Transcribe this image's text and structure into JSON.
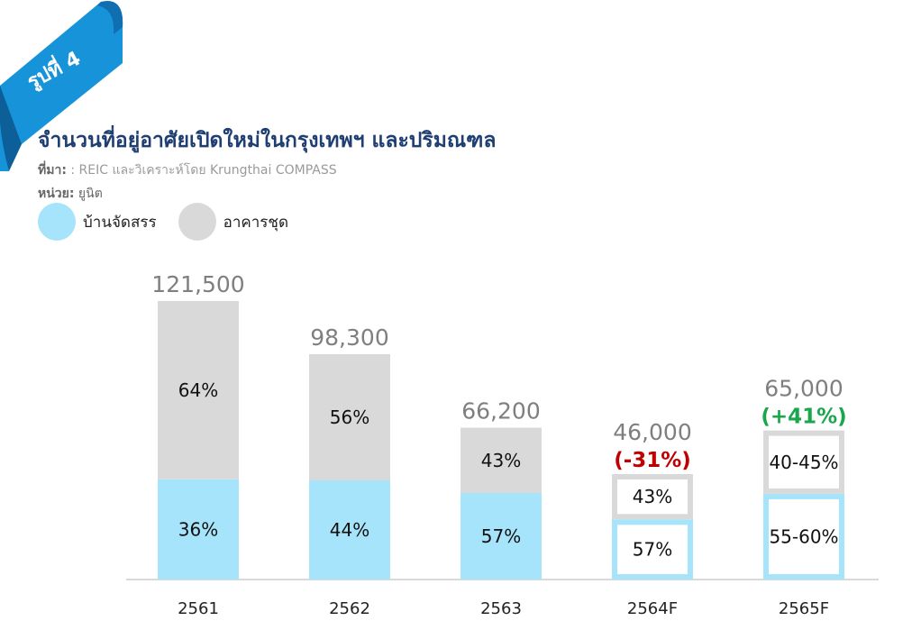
{
  "figure_label": "รูปที่ 4",
  "title": "จำนวนที่อยู่อาศัยเปิดใหม่ในกรุงเทพฯ และปริมณฑล",
  "source_label": "ที่มา:",
  "source_text": " : REIC และวิเคราะห์โดย Krungthai COMPASS",
  "unit_label": "หน่วย:",
  "unit_text": " ยูนิต",
  "colors": {
    "houses": "#a5e4fa",
    "condo": "#d9d9d9",
    "title": "#1f3f73",
    "negative": "#c00000",
    "positive": "#1aa64b",
    "total_label": "#7f7f7f",
    "ribbon": "#1793d9"
  },
  "chart_data": {
    "type": "bar",
    "stacked": true,
    "categories": [
      "2561",
      "2562",
      "2563",
      "2564F",
      "2565F"
    ],
    "totals": [
      121500,
      98300,
      66200,
      46000,
      65000
    ],
    "total_labels": [
      "121,500",
      "98,300",
      "66,200",
      "46,000",
      "65,000"
    ],
    "series": [
      {
        "name": "บ้านจัดสรร",
        "share": [
          0.36,
          0.44,
          0.57,
          0.57,
          0.575
        ],
        "labels": [
          "36%",
          "44%",
          "57%",
          "57%",
          "55-60%"
        ]
      },
      {
        "name": "อาคารชุด",
        "share": [
          0.64,
          0.56,
          0.43,
          0.43,
          0.425
        ],
        "labels": [
          "64%",
          "56%",
          "43%",
          "43%",
          "40-45%"
        ]
      }
    ],
    "forecast": [
      false,
      false,
      false,
      true,
      true
    ],
    "change_labels": [
      "",
      "",
      "",
      "(-31%)",
      "(+41%)"
    ],
    "change_type": [
      "",
      "",
      "",
      "negative",
      "positive"
    ],
    "ylim": [
      0,
      125000
    ],
    "legend": "top-left",
    "grid": false
  }
}
